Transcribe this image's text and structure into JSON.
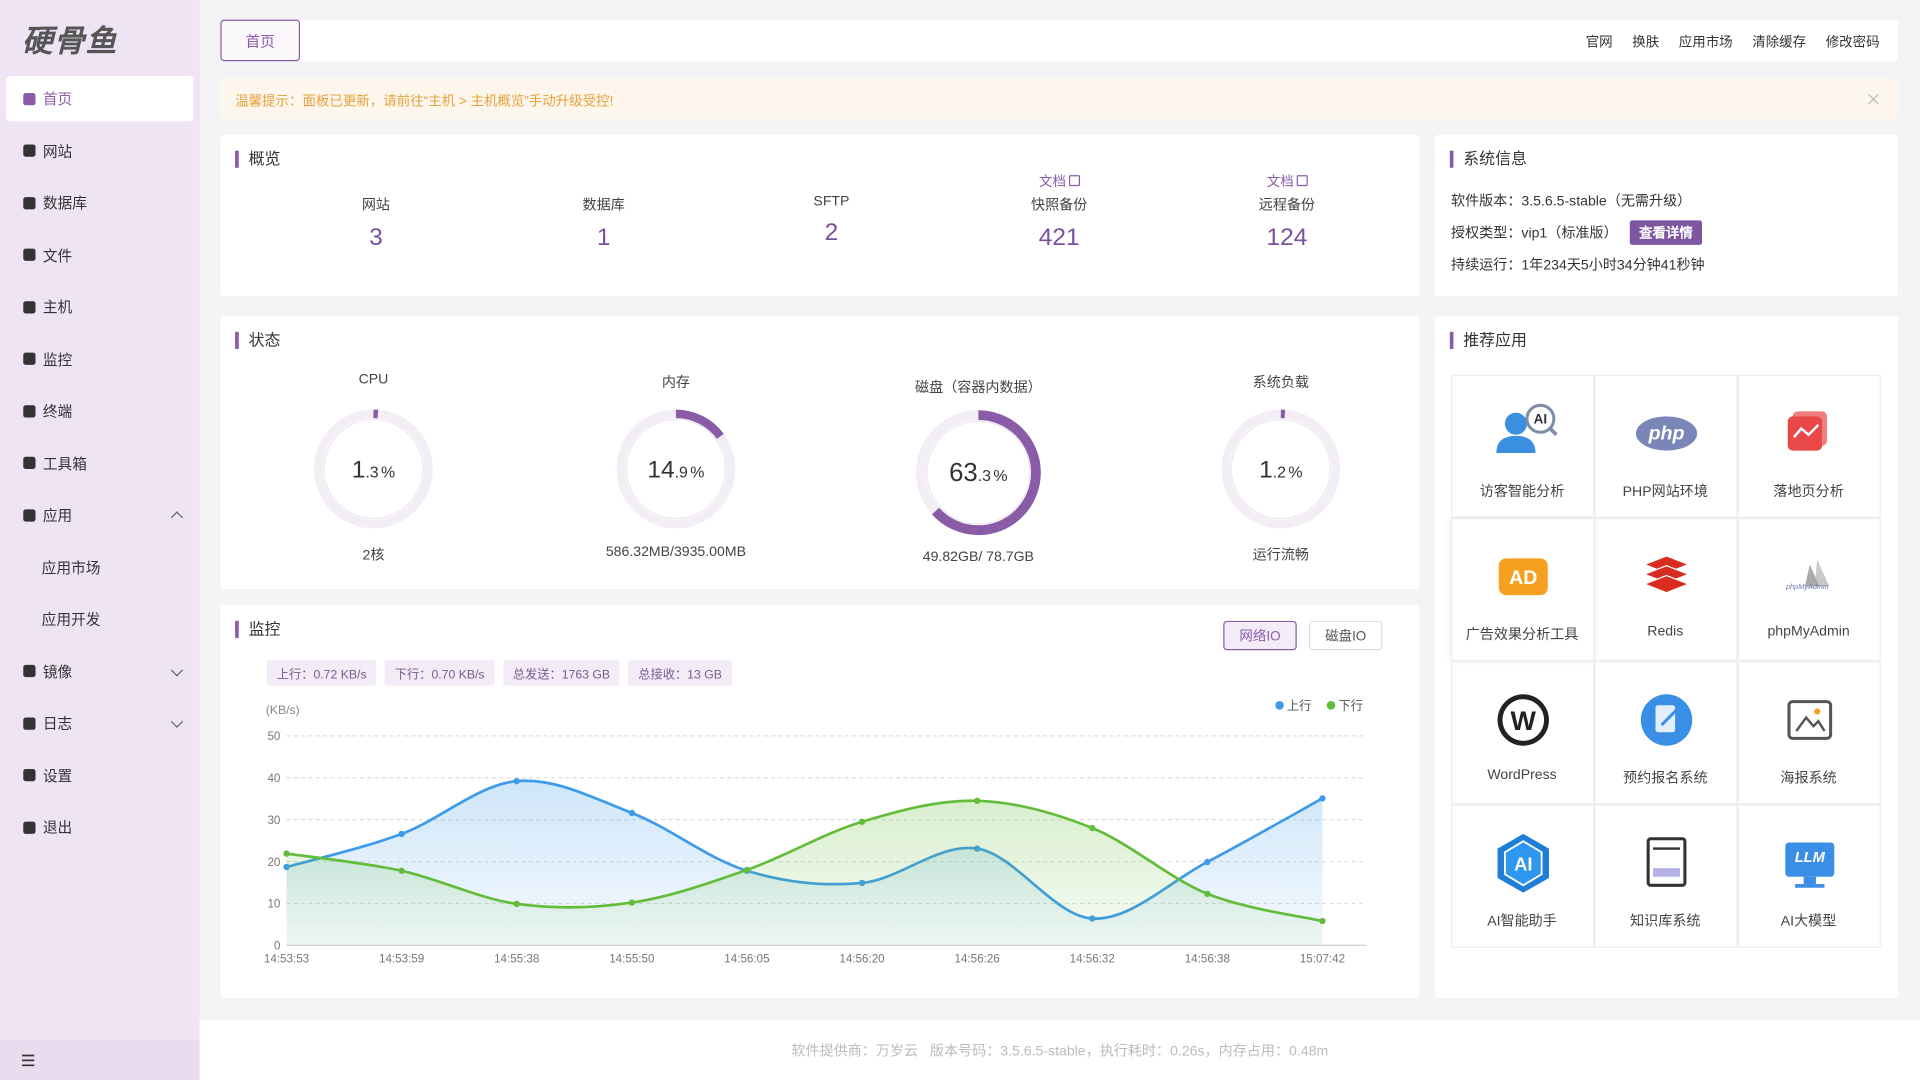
{
  "sidebar": {
    "logo": "硬骨鱼",
    "menu": [
      {
        "label": "首页",
        "active": true
      },
      {
        "label": "网站"
      },
      {
        "label": "数据库"
      },
      {
        "label": "文件"
      },
      {
        "label": "主机"
      },
      {
        "label": "监控"
      },
      {
        "label": "终端"
      },
      {
        "label": "工具箱"
      },
      {
        "label": "应用",
        "dropdown": "open",
        "children": [
          "应用市场",
          "应用开发"
        ]
      },
      {
        "label": "镜像",
        "dropdown": "closed"
      },
      {
        "label": "日志",
        "dropdown": "closed"
      },
      {
        "label": "设置"
      },
      {
        "label": "退出"
      }
    ]
  },
  "topbar": {
    "tab": "首页",
    "links": [
      "官网",
      "换肤",
      "应用市场",
      "清除缓存",
      "修改密码"
    ]
  },
  "notice": "温馨提示：面板已更新，请前往“主机 > 主机概览”手动升级受控!",
  "overview": {
    "title": "概览",
    "items": [
      {
        "label": "网站",
        "value": 3
      },
      {
        "label": "数据库",
        "value": 1
      },
      {
        "label": "SFTP",
        "value": 2
      },
      {
        "label": "快照备份",
        "value": 421,
        "link": "文档"
      },
      {
        "label": "远程备份",
        "value": 124,
        "link": "文档"
      }
    ]
  },
  "system_info": {
    "title": "系统信息",
    "version": "软件版本：3.5.6.5-stable（无需升级）",
    "license": "授权类型：vip1（标准版）",
    "detail_button": "查看详情",
    "uptime": "持续运行：1年234天5小时34分钟41秒钟"
  },
  "status": {
    "title": "状态",
    "unit": "%",
    "gauges": [
      {
        "label": "CPU",
        "value": 1.3,
        "detail": "2核"
      },
      {
        "label": "内存",
        "value": 14.9,
        "detail": "586.32MB/3935.00MB"
      },
      {
        "label": "磁盘（容器内数据）",
        "value": 63.3,
        "detail": "49.82GB/ 78.7GB"
      },
      {
        "label": "系统负载",
        "value": 1.2,
        "detail": "运行流畅"
      }
    ]
  },
  "monitor": {
    "title": "监控",
    "tabs": [
      {
        "label": "网络IO",
        "active": true
      },
      {
        "label": "磁盘IO"
      }
    ],
    "stats": [
      "上行：0.72 KB/s",
      "下行：0.70 KB/s",
      "总发送：1763 GB",
      "总接收：13 GB"
    ],
    "chart_data": {
      "type": "line",
      "y_label": "(KB/s)",
      "categories": [
        "14:53:53",
        "14:53:59",
        "14:55:38",
        "14:55:50",
        "14:56:05",
        "14:56:20",
        "14:56:26",
        "14:56:32",
        "14:56:38",
        "15:07:42"
      ],
      "series": [
        {
          "name": "上行",
          "color": "#3d9be9",
          "values": [
            18.7,
            26.6,
            39.2,
            31.6,
            17.8,
            14.9,
            23.1,
            6.4,
            19.9,
            35.1
          ]
        },
        {
          "name": "下行",
          "color": "#63bd3a",
          "values": [
            21.9,
            17.8,
            9.9,
            10.2,
            18,
            29.5,
            34.5,
            28,
            12.3,
            5.8
          ]
        }
      ],
      "ylim": [
        0,
        50
      ],
      "yticks": [
        0,
        10,
        20,
        30,
        40,
        50
      ],
      "grid": true,
      "legend": "top-right"
    }
  },
  "apps": {
    "title": "推荐应用",
    "items": [
      {
        "name": "访客智能分析",
        "icon_text": "AI"
      },
      {
        "name": "PHP网站环境",
        "icon_text": "php"
      },
      {
        "name": "落地页分析"
      },
      {
        "name": "广告效果分析工具",
        "icon_text": "AD"
      },
      {
        "name": "Redis"
      },
      {
        "name": "phpMyAdmin",
        "icon_text": "phpMyAdmin"
      },
      {
        "name": "WordPress",
        "icon_text": "W"
      },
      {
        "name": "预约报名系统"
      },
      {
        "name": "海报系统"
      },
      {
        "name": "AI智能助手",
        "icon_text": "AI"
      },
      {
        "name": "知识库系统"
      },
      {
        "name": "AI大模型",
        "icon_text": "LLM"
      }
    ]
  },
  "footer": "软件提供商：万岁云   版本号码：3.5.6.5-stable，执行耗时：0.26s，内存占用：0.48m"
}
